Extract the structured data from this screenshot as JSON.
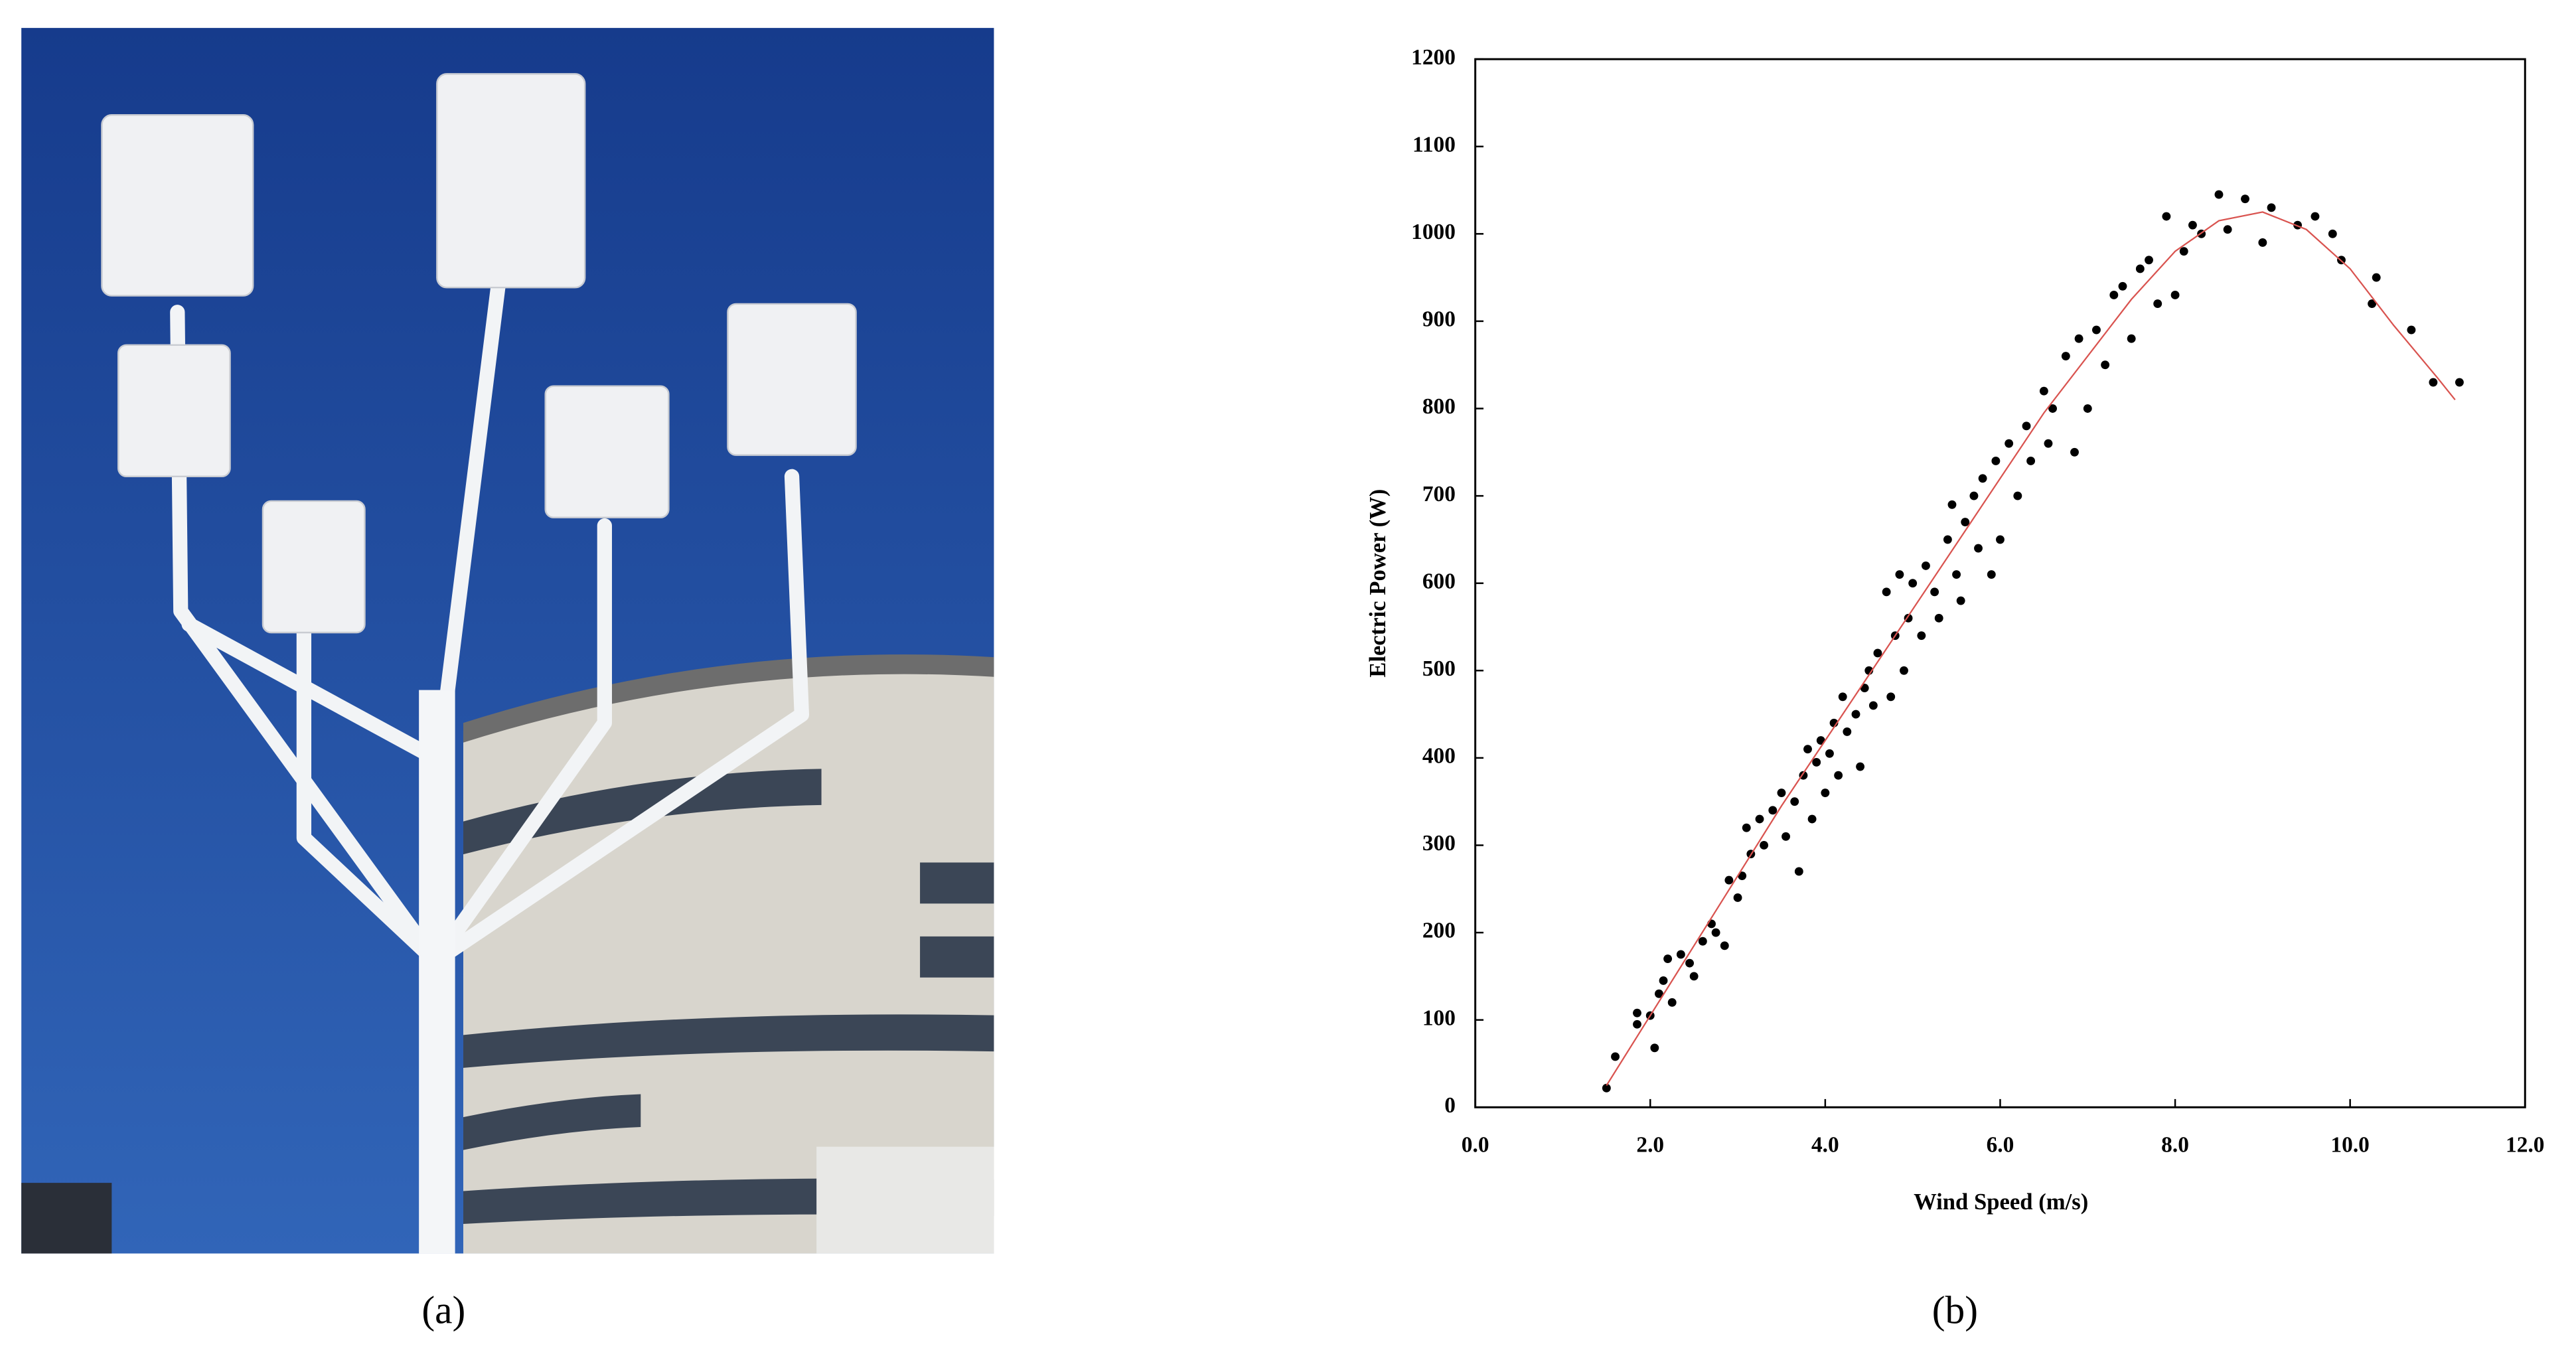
{
  "captions": [
    "(a)",
    "(b)"
  ],
  "chart_data": {
    "type": "scatter",
    "x_label": "Wind Speed (m/s)",
    "y_label": "Electric Power (W)",
    "xlim": [
      0,
      12
    ],
    "ylim": [
      0,
      1200
    ],
    "xticks": [
      {
        "value": 0,
        "label": "0.0"
      },
      {
        "value": 2,
        "label": "2.0"
      },
      {
        "value": 4,
        "label": "4.0"
      },
      {
        "value": 6,
        "label": "6.0"
      },
      {
        "value": 8,
        "label": "8.0"
      },
      {
        "value": 10,
        "label": "10.0"
      },
      {
        "value": 12,
        "label": "12.0"
      }
    ],
    "yticks": [
      0,
      100,
      200,
      300,
      400,
      500,
      600,
      700,
      800,
      900,
      1000,
      1100,
      1200
    ],
    "grid": false,
    "series": [
      {
        "color": "#000000",
        "mode": "markers",
        "x": [
          1.5,
          1.6,
          1.85,
          1.85,
          2.0,
          2.05,
          2.1,
          2.15,
          2.2,
          2.25,
          2.35,
          2.45,
          2.5,
          2.6,
          2.7,
          2.75,
          2.85,
          2.9,
          3.0,
          3.05,
          3.1,
          3.15,
          3.25,
          3.3,
          3.4,
          3.5,
          3.55,
          3.65,
          3.7,
          3.75,
          3.8,
          3.85,
          3.9,
          3.95,
          4.0,
          4.05,
          4.1,
          4.15,
          4.2,
          4.25,
          4.35,
          4.4,
          4.45,
          4.5,
          4.55,
          4.6,
          4.7,
          4.75,
          4.8,
          4.85,
          4.9,
          4.95,
          5.0,
          5.1,
          5.15,
          5.25,
          5.3,
          5.4,
          5.45,
          5.5,
          5.55,
          5.6,
          5.7,
          5.75,
          5.8,
          5.9,
          5.95,
          6.0,
          6.1,
          6.2,
          6.3,
          6.35,
          6.5,
          6.55,
          6.6,
          6.75,
          6.85,
          6.9,
          7.0,
          7.1,
          7.2,
          7.3,
          7.4,
          7.5,
          7.6,
          7.7,
          7.8,
          7.9,
          8.0,
          8.1,
          8.2,
          8.3,
          8.5,
          8.6,
          8.8,
          9.0,
          9.1,
          9.4,
          9.6,
          9.8,
          9.9,
          10.3,
          10.25,
          10.7,
          10.95,
          11.25
        ],
        "values": [
          22,
          58,
          95,
          108,
          105,
          68,
          130,
          145,
          170,
          120,
          175,
          165,
          150,
          190,
          210,
          200,
          185,
          260,
          240,
          265,
          320,
          290,
          330,
          300,
          340,
          360,
          310,
          350,
          270,
          380,
          410,
          330,
          395,
          420,
          360,
          405,
          440,
          380,
          470,
          430,
          450,
          390,
          480,
          500,
          460,
          520,
          590,
          470,
          540,
          610,
          500,
          560,
          600,
          540,
          620,
          590,
          560,
          650,
          690,
          610,
          580,
          670,
          700,
          640,
          720,
          610,
          740,
          650,
          760,
          700,
          780,
          740,
          820,
          760,
          800,
          860,
          750,
          880,
          800,
          890,
          850,
          930,
          940,
          880,
          960,
          970,
          920,
          1020,
          930,
          980,
          1010,
          1000,
          1045,
          1005,
          1040,
          990,
          1030,
          1010,
          1020,
          1000,
          970,
          950,
          920,
          890,
          830,
          830
        ]
      },
      {
        "color": "#d9534f",
        "mode": "line",
        "x": [
          1.5,
          2,
          2.5,
          3,
          3.5,
          4,
          4.5,
          5,
          5.5,
          6,
          6.5,
          7,
          7.5,
          8,
          8.5,
          9,
          9.5,
          10,
          10.5,
          11,
          11.2
        ],
        "values": [
          25,
          105,
          185,
          265,
          345,
          420,
          495,
          570,
          645,
          720,
          795,
          860,
          925,
          980,
          1015,
          1025,
          1005,
          960,
          895,
          835,
          810
        ]
      }
    ]
  }
}
